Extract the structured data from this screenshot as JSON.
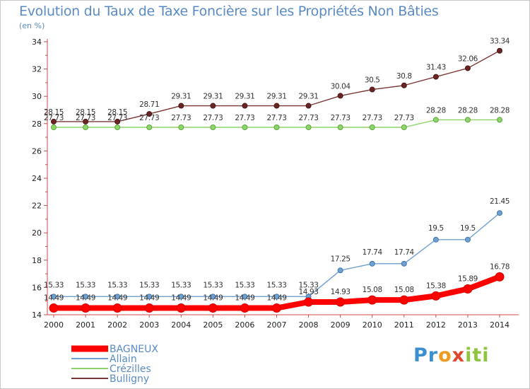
{
  "chart_data": {
    "type": "line",
    "title": "Evolution du Taux de Taxe Foncière sur les Propriétés Non Bâties",
    "subtitle": "(en %)",
    "x": [
      "2000",
      "2001",
      "2002",
      "2003",
      "2004",
      "2005",
      "2006",
      "2007",
      "2008",
      "2009",
      "2010",
      "2011",
      "2012",
      "2013",
      "2014"
    ],
    "ylim": [
      14,
      34
    ],
    "yticks": [
      14,
      16,
      18,
      20,
      22,
      24,
      26,
      28,
      30,
      32,
      34
    ],
    "grid": false,
    "legend_position": "bottom-left",
    "series": [
      {
        "name": "BAGNEUX",
        "color": "#ff0000",
        "values": [
          14.49,
          14.49,
          14.49,
          14.49,
          14.49,
          14.49,
          14.49,
          14.49,
          14.93,
          14.93,
          15.08,
          15.08,
          15.38,
          15.89,
          16.78
        ],
        "labels": [
          "14.49",
          "14.49",
          "14.49",
          "14.49",
          "14.49",
          "14.49",
          "14.49",
          "14.49",
          "14.93",
          "14.93",
          "15.08",
          "15.08",
          "15.38",
          "15.89",
          "16.78"
        ]
      },
      {
        "name": "Allain",
        "color": "#6fa0d0",
        "values": [
          15.33,
          15.33,
          15.33,
          15.33,
          15.33,
          15.33,
          15.33,
          15.33,
          15.33,
          17.25,
          17.74,
          17.74,
          19.5,
          19.5,
          21.45
        ],
        "labels": [
          "15.33",
          "15.33",
          "15.33",
          "15.33",
          "15.33",
          "15.33",
          "15.33",
          "15.33",
          "15.33",
          "17.25",
          "17.74",
          "17.74",
          "19.5",
          "19.5",
          "21.45"
        ]
      },
      {
        "name": "Crézilles",
        "color": "#8fd46a",
        "values": [
          27.73,
          27.73,
          27.73,
          27.73,
          27.73,
          27.73,
          27.73,
          27.73,
          27.73,
          27.73,
          27.73,
          27.73,
          28.28,
          28.28,
          28.28
        ],
        "labels": [
          "27.73",
          "27.73",
          "27.73",
          "27.73",
          "27.73",
          "27.73",
          "27.73",
          "27.73",
          "27.73",
          "27.73",
          "27.73",
          "27.73",
          "28.28",
          "28.28",
          "28.28"
        ]
      },
      {
        "name": "Bulligny",
        "color": "#7a3535",
        "values": [
          28.15,
          28.15,
          28.15,
          28.71,
          29.31,
          29.31,
          29.31,
          29.31,
          29.31,
          30.04,
          30.5,
          30.8,
          31.43,
          32.06,
          33.34
        ],
        "labels": [
          "28.15",
          "28.15",
          "28.15",
          "28.71",
          "29.31",
          "29.31",
          "29.31",
          "29.31",
          "29.31",
          "30.04",
          "30.5",
          "30.8",
          "31.43",
          "32.06",
          "33.34"
        ]
      }
    ]
  },
  "logo": {
    "parts": [
      "Pr",
      "o",
      "x",
      "iti"
    ]
  }
}
